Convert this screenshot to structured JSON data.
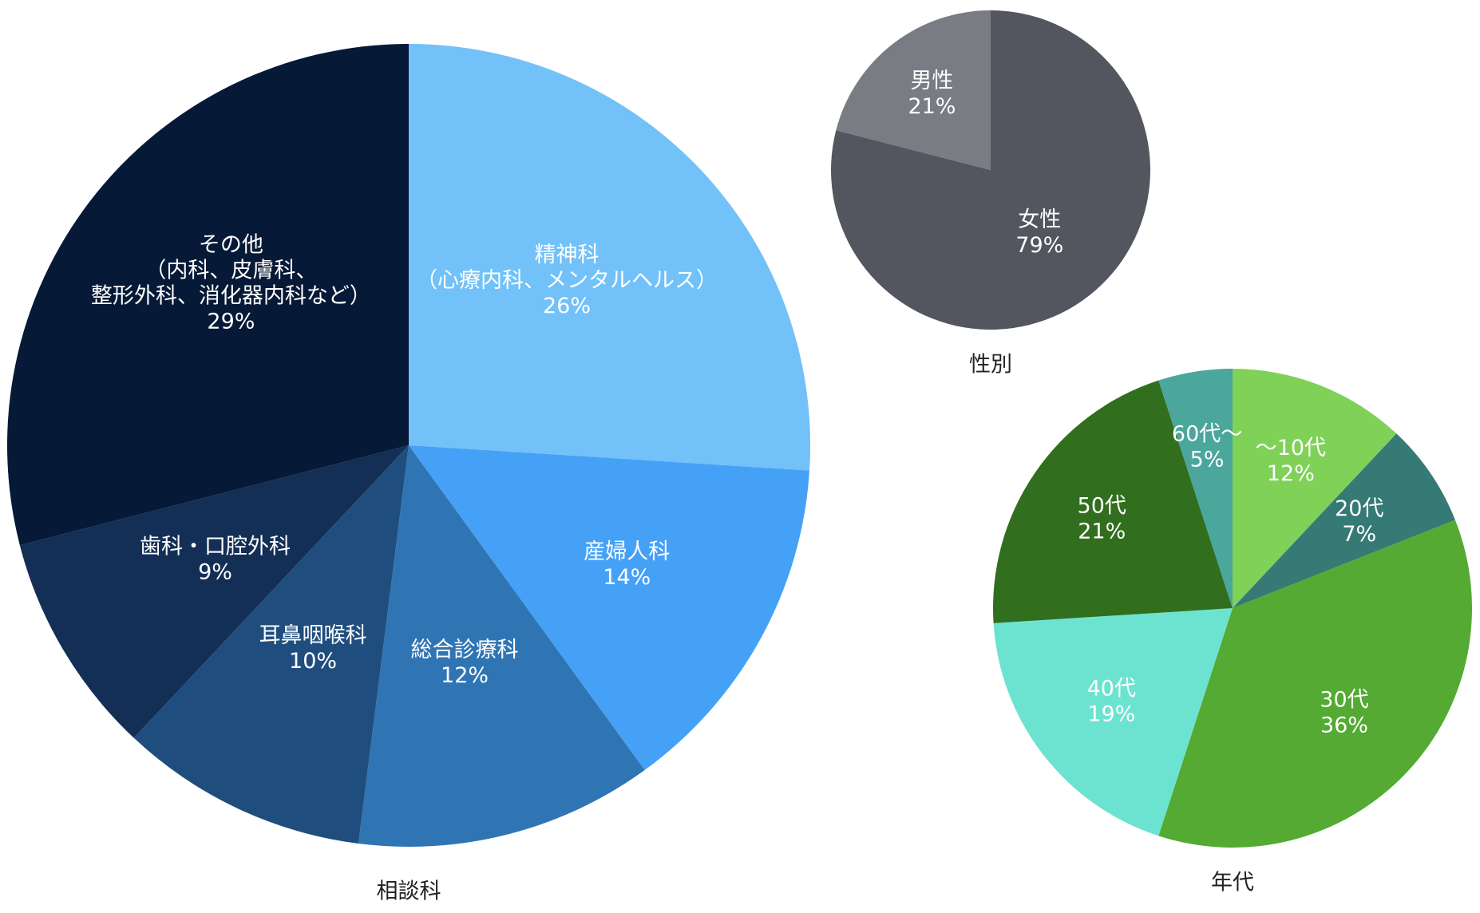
{
  "chart_data": [
    {
      "type": "pie",
      "title": "相談科",
      "slices": [
        {
          "lines": [
            "精神科",
            "（心療内科、メンタルヘルス）"
          ],
          "value": 26,
          "percent_label": "26%",
          "color": "#72C1F8"
        },
        {
          "lines": [
            "産婦人科"
          ],
          "value": 14,
          "percent_label": "14%",
          "color": "#45A1F6"
        },
        {
          "lines": [
            "総合診療科"
          ],
          "value": 12,
          "percent_label": "12%",
          "color": "#3075B3"
        },
        {
          "lines": [
            "耳鼻咽喉科"
          ],
          "value": 10,
          "percent_label": "10%",
          "color": "#1F4E7E"
        },
        {
          "lines": [
            "歯科・口腔外科"
          ],
          "value": 9,
          "percent_label": "9%",
          "color": "#132F56"
        },
        {
          "lines": [
            "その他",
            "（内科、皮膚科、",
            "整形外科、消化器内科など）"
          ],
          "value": 29,
          "percent_label": "29%",
          "color": "#061936"
        }
      ]
    },
    {
      "type": "pie",
      "title": "性別",
      "slices": [
        {
          "lines": [
            "女性"
          ],
          "value": 79,
          "percent_label": "79%",
          "color": "#53565E"
        },
        {
          "lines": [
            "男性"
          ],
          "value": 21,
          "percent_label": "21%",
          "color": "#797C83"
        }
      ]
    },
    {
      "type": "pie",
      "title": "年代",
      "slices": [
        {
          "lines": [
            "～10代"
          ],
          "value": 12,
          "percent_label": "12%",
          "color": "#80D158"
        },
        {
          "lines": [
            "20代"
          ],
          "value": 7,
          "percent_label": "7%",
          "color": "#357A75"
        },
        {
          "lines": [
            "30代"
          ],
          "value": 36,
          "percent_label": "36%",
          "color": "#54AA32"
        },
        {
          "lines": [
            "40代"
          ],
          "value": 19,
          "percent_label": "19%",
          "color": "#6CE3D0"
        },
        {
          "lines": [
            "50代"
          ],
          "value": 21,
          "percent_label": "21%",
          "color": "#316E1E"
        },
        {
          "lines": [
            "60代～"
          ],
          "value": 5,
          "percent_label": "5%",
          "color": "#4BA69C"
        }
      ]
    }
  ]
}
